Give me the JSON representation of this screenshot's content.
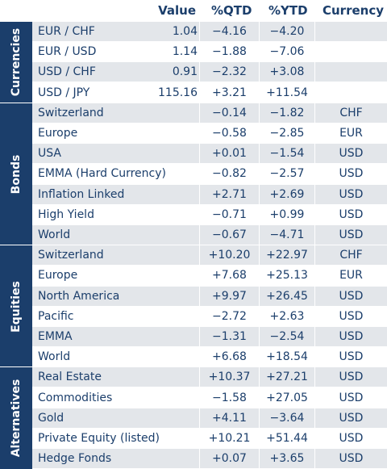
{
  "headers": {
    "value": "Value",
    "qtd": "%QTD",
    "ytd": "%YTD",
    "currency": "Currency"
  },
  "sections": [
    {
      "label": "Currencies",
      "rows": [
        {
          "name": "EUR / CHF",
          "value": "1.04",
          "qtd": "−4.16",
          "ytd": "−4.20",
          "currency": ""
        },
        {
          "name": "EUR / USD",
          "value": "1.14",
          "qtd": "−1.88",
          "ytd": "−7.06",
          "currency": ""
        },
        {
          "name": "USD / CHF",
          "value": "0.91",
          "qtd": "−2.32",
          "ytd": "+3.08",
          "currency": ""
        },
        {
          "name": "USD / JPY",
          "value": "115.16",
          "qtd": "+3.21",
          "ytd": "+11.54",
          "currency": ""
        }
      ]
    },
    {
      "label": "Bonds",
      "rows": [
        {
          "name": "Switzerland",
          "value": "",
          "qtd": "−0.14",
          "ytd": "−1.82",
          "currency": "CHF"
        },
        {
          "name": "Europe",
          "value": "",
          "qtd": "−0.58",
          "ytd": "−2.85",
          "currency": "EUR"
        },
        {
          "name": "USA",
          "value": "",
          "qtd": "+0.01",
          "ytd": "−1.54",
          "currency": "USD"
        },
        {
          "name": "EMMA (Hard Currency)",
          "value": "",
          "qtd": "−0.82",
          "ytd": "−2.57",
          "currency": "USD"
        },
        {
          "name": "Inflation Linked",
          "value": "",
          "qtd": "+2.71",
          "ytd": "+2.69",
          "currency": "USD"
        },
        {
          "name": "High Yield",
          "value": "",
          "qtd": "−0.71",
          "ytd": "+0.99",
          "currency": "USD"
        },
        {
          "name": "World",
          "value": "",
          "qtd": "−0.67",
          "ytd": "−4.71",
          "currency": "USD"
        }
      ]
    },
    {
      "label": "Equities",
      "rows": [
        {
          "name": "Switzerland",
          "value": "",
          "qtd": "+10.20",
          "ytd": "+22.97",
          "currency": "CHF"
        },
        {
          "name": "Europe",
          "value": "",
          "qtd": "+7.68",
          "ytd": "+25.13",
          "currency": "EUR"
        },
        {
          "name": "North America",
          "value": "",
          "qtd": "+9.97",
          "ytd": "+26.45",
          "currency": "USD"
        },
        {
          "name": "Pacific",
          "value": "",
          "qtd": "−2.72",
          "ytd": "+2.63",
          "currency": "USD"
        },
        {
          "name": "EMMA",
          "value": "",
          "qtd": "−1.31",
          "ytd": "−2.54",
          "currency": "USD"
        },
        {
          "name": "World",
          "value": "",
          "qtd": "+6.68",
          "ytd": "+18.54",
          "currency": "USD"
        }
      ]
    },
    {
      "label": "Alternatives",
      "rows": [
        {
          "name": "Real Estate",
          "value": "",
          "qtd": "+10.37",
          "ytd": "+27.21",
          "currency": "USD"
        },
        {
          "name": "Commodities",
          "value": "",
          "qtd": "−1.58",
          "ytd": "+27.05",
          "currency": "USD"
        },
        {
          "name": "Gold",
          "value": "",
          "qtd": "+4.11",
          "ytd": "−3.64",
          "currency": "USD"
        },
        {
          "name": "Private Equity (listed)",
          "value": "",
          "qtd": "+10.21",
          "ytd": "+51.44",
          "currency": "USD"
        },
        {
          "name": "Hedge Fonds",
          "value": "",
          "qtd": "+0.07",
          "ytd": "+3.65",
          "currency": "USD"
        }
      ]
    }
  ]
}
